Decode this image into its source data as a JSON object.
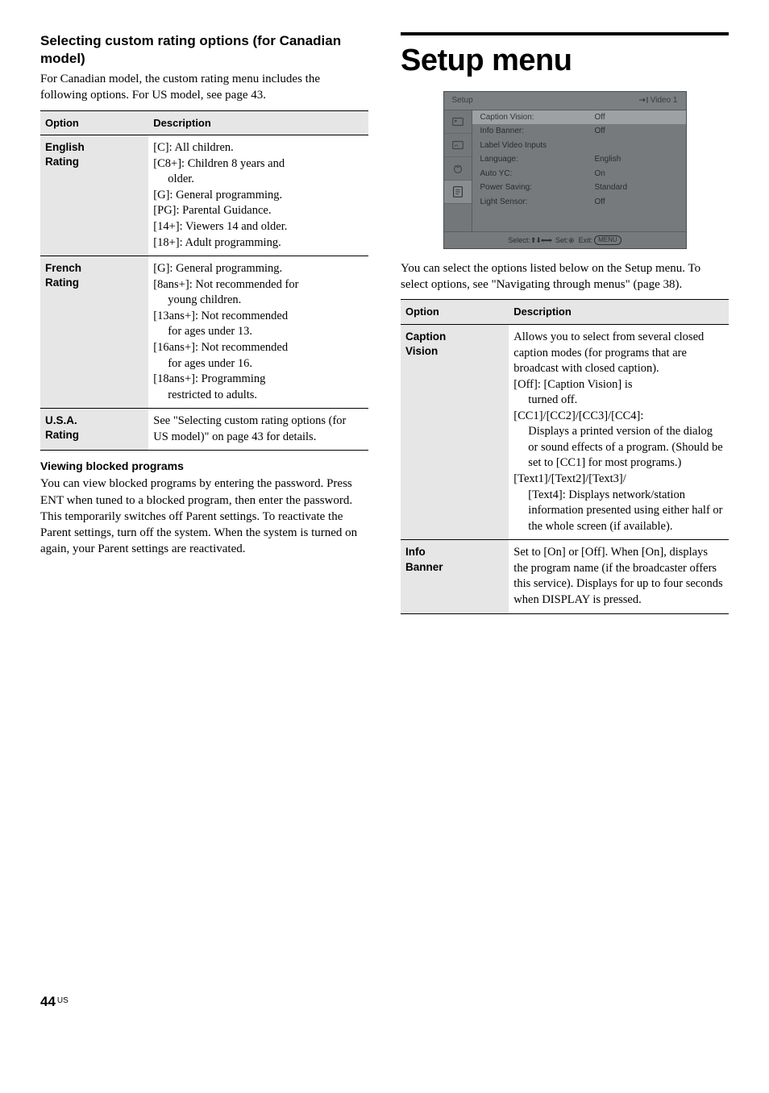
{
  "left": {
    "heading": "Selecting custom rating options (for Canadian model)",
    "intro": "For Canadian model, the custom rating menu includes the following options. For US model, see page 43.",
    "table_headers": {
      "option": "Option",
      "desc": "Description"
    },
    "rows": [
      {
        "label": "English Rating",
        "lines": [
          "[C]: All children.",
          "[C8+]: Children 8 years and",
          "older.",
          "[G]: General programming.",
          "[PG]: Parental Guidance.",
          "[14+]: Viewers 14 and older.",
          "[18+]: Adult programming."
        ],
        "indent_idx": [
          2
        ]
      },
      {
        "label": "French Rating",
        "lines": [
          "[G]: General programming.",
          "[8ans+]: Not recommended for",
          "young children.",
          "[13ans+]: Not recommended",
          "for ages under 13.",
          "[16ans+]: Not recommended",
          "for ages under 16.",
          "[18ans+]: Programming",
          "restricted to adults."
        ],
        "indent_idx": [
          2,
          4,
          6,
          8
        ]
      },
      {
        "label": "U.S.A. Rating",
        "lines": [
          "See \"Selecting custom rating options (for US model)\" on page 43 for details."
        ],
        "indent_idx": []
      }
    ],
    "viewing_heading": "Viewing blocked programs",
    "viewing_body": "You can view blocked programs by entering the password. Press ENT when tuned to a blocked program, then enter the password. This temporarily switches off Parent settings. To reactivate the Parent settings, turn off the system. When the system is turned on again, your Parent settings are reactivated."
  },
  "right": {
    "title": "Setup menu",
    "osd": {
      "top_left": "Setup",
      "top_right": "Video 1",
      "items": [
        {
          "k": "Caption Vision:",
          "v": "Off",
          "hl": true
        },
        {
          "k": "Info Banner:",
          "v": "Off"
        },
        {
          "k": "Label Video Inputs",
          "v": ""
        },
        {
          "k": "Language:",
          "v": "English"
        },
        {
          "k": "Auto YC:",
          "v": "On"
        },
        {
          "k": "Power Saving:",
          "v": "Standard"
        },
        {
          "k": "Light Sensor:",
          "v": "Off"
        }
      ],
      "footer_select": "Select:",
      "footer_set": "Set:",
      "footer_exit": "Exit:",
      "footer_menu": "MENU"
    },
    "intro": "You can select the options listed below on the Setup menu. To select options, see \"Navigating through menus\" (page 38).",
    "table_headers": {
      "option": "Option",
      "desc": "Description"
    },
    "rows": [
      {
        "label": "Caption Vision",
        "lines": [
          "Allows you to select from several closed caption modes (for programs that are broadcast with closed caption).",
          "[Off]: [Caption Vision] is",
          "turned off.",
          "[CC1]/[CC2]/[CC3]/[CC4]:",
          "Displays a printed version of the dialog or sound effects of a program. (Should be set to [CC1] for most programs.)",
          "[Text1]/[Text2]/[Text3]/",
          "[Text4]: Displays network/station information presented using either half or the whole screen (if available)."
        ],
        "indent_idx": [
          2,
          4,
          6
        ]
      },
      {
        "label": "Info Banner",
        "lines": [
          "Set to [On] or [Off]. When [On], displays the program name (if the broadcaster offers this service). Displays for up to four seconds when DISPLAY is pressed."
        ],
        "indent_idx": []
      }
    ]
  },
  "page": {
    "num": "44",
    "sup": "US"
  }
}
